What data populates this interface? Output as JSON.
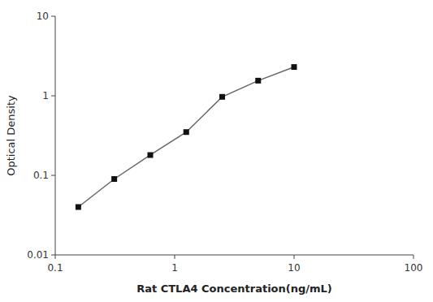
{
  "chart_data": {
    "type": "line",
    "x": [
      0.156,
      0.312,
      0.625,
      1.25,
      2.5,
      5.0,
      10.0
    ],
    "values": [
      0.04,
      0.09,
      0.18,
      0.35,
      0.97,
      1.55,
      2.3
    ],
    "xlabel": "Rat CTLA4 Concentration(ng/mL)",
    "ylabel": "Optical Density",
    "xlim": [
      0.1,
      100
    ],
    "ylim": [
      0.01,
      10
    ],
    "xticks": [
      0.1,
      1,
      10,
      100
    ],
    "yticks": [
      0.01,
      0.1,
      1,
      10
    ],
    "log": true,
    "grid": false,
    "color": "#666666",
    "colors": [
      "#111111",
      "#111111",
      "#111111",
      "#111111",
      "#111111",
      "#111111",
      "#111111"
    ],
    "marker": "square"
  }
}
